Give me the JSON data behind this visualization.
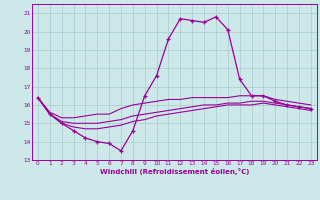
{
  "x": [
    0,
    1,
    2,
    3,
    4,
    5,
    6,
    7,
    8,
    9,
    10,
    11,
    12,
    13,
    14,
    15,
    16,
    17,
    18,
    19,
    20,
    21,
    22,
    23
  ],
  "line_main": [
    16.4,
    15.5,
    15.0,
    14.6,
    14.2,
    14.0,
    13.9,
    13.5,
    14.6,
    16.5,
    17.6,
    19.6,
    20.7,
    20.6,
    20.5,
    20.8,
    20.1,
    17.4,
    16.5,
    16.5,
    16.2,
    16.0,
    15.9,
    15.8
  ],
  "line_a": [
    16.4,
    15.6,
    15.3,
    15.3,
    15.4,
    15.5,
    15.5,
    15.8,
    16.0,
    16.1,
    16.2,
    16.3,
    16.3,
    16.4,
    16.4,
    16.4,
    16.4,
    16.5,
    16.5,
    16.5,
    16.3,
    16.2,
    16.1,
    16.0
  ],
  "line_b": [
    16.4,
    15.5,
    15.1,
    15.0,
    15.0,
    15.0,
    15.1,
    15.2,
    15.4,
    15.5,
    15.6,
    15.7,
    15.8,
    15.9,
    16.0,
    16.0,
    16.1,
    16.1,
    16.2,
    16.2,
    16.1,
    16.0,
    15.9,
    15.8
  ],
  "line_c": [
    16.4,
    15.5,
    15.0,
    14.8,
    14.7,
    14.7,
    14.8,
    14.9,
    15.1,
    15.2,
    15.4,
    15.5,
    15.6,
    15.7,
    15.8,
    15.9,
    16.0,
    16.0,
    16.0,
    16.1,
    16.0,
    15.9,
    15.8,
    15.7
  ],
  "line_color": "#990099",
  "bg_color": "#cce8e8",
  "grid_color": "#aacccc",
  "ylim": [
    13,
    21.5
  ],
  "xlim": [
    -0.5,
    23.5
  ],
  "yticks": [
    13,
    14,
    15,
    16,
    17,
    18,
    19,
    20,
    21
  ],
  "xticks": [
    0,
    1,
    2,
    3,
    4,
    5,
    6,
    7,
    8,
    9,
    10,
    11,
    12,
    13,
    14,
    15,
    16,
    17,
    18,
    19,
    20,
    21,
    22,
    23
  ],
  "xlabel": "Windchill (Refroidissement éolien,°C)"
}
